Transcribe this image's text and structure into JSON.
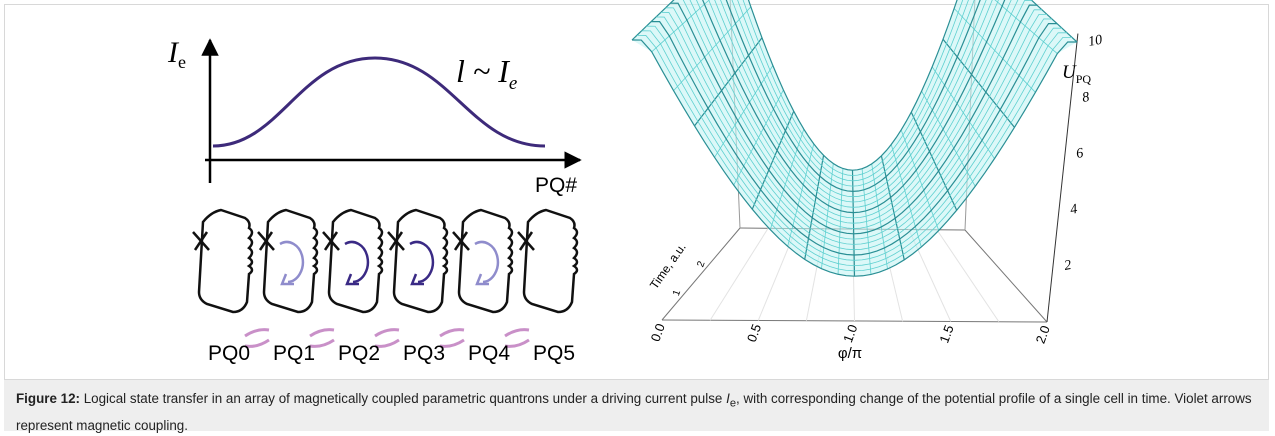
{
  "left_panel": {
    "y_label": "I",
    "y_label_sub": "e",
    "relation_lhs": "l ~",
    "relation_rhs": "I",
    "relation_rhs_sub": "e",
    "x_label": "PQ#",
    "cells": [
      "PQ0",
      "PQ1",
      "PQ2",
      "PQ3",
      "PQ4",
      "PQ5"
    ]
  },
  "right_panel": {
    "x_label": "φ/π",
    "x_ticks": [
      "0.0",
      "0.5",
      "1.0",
      "1.5",
      "2.0"
    ],
    "time_label": "Time, a.u.",
    "time_ticks": [
      "1",
      "2"
    ],
    "z_label": "U",
    "z_label_sub": "PQ",
    "z_ticks": [
      "2",
      "4",
      "6",
      "8",
      "10"
    ]
  },
  "caption": {
    "label": "Figure 12:",
    "text_before": " Logical state transfer in an array of magnetically coupled parametric quantrons under a driving current pulse ",
    "symbol": "I",
    "symbol_sub": "e",
    "text_after": ", with corresponding change of the potential profile of a single cell in time. Violet arrows represent magnetic coupling."
  }
}
